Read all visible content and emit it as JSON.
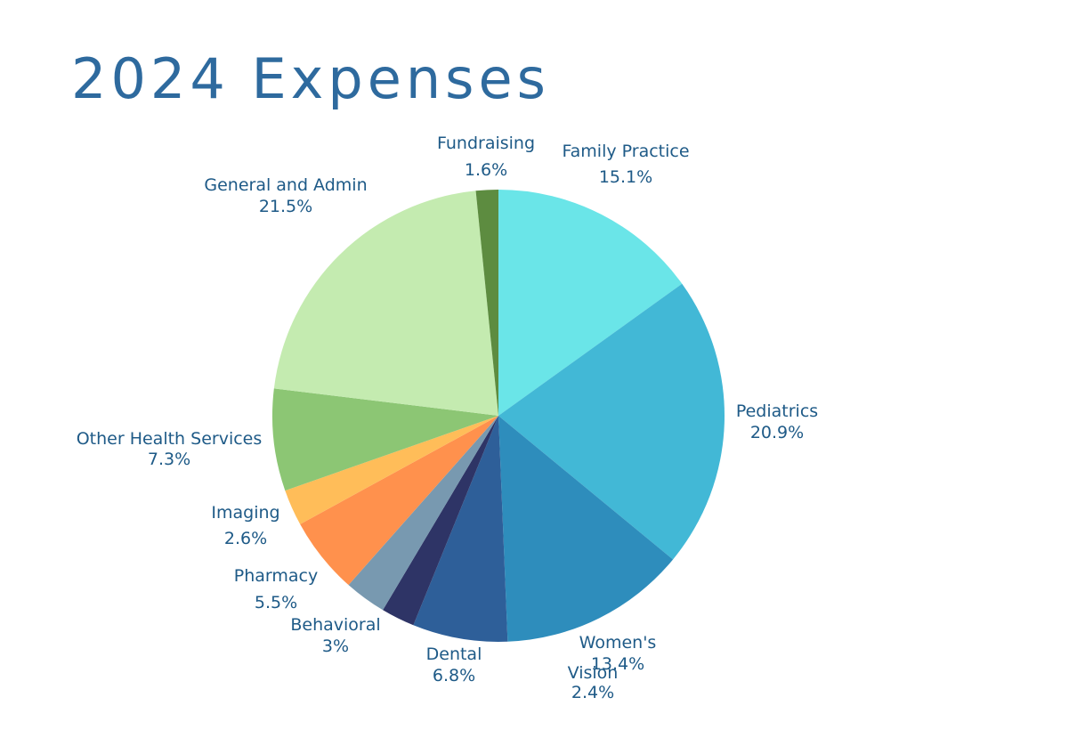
{
  "title": "2024 Expenses",
  "chart_data": {
    "type": "pie",
    "title": "2024 Expenses",
    "slices": [
      {
        "label": "Family Practice",
        "value": 15.1,
        "display": "15.1%",
        "color": "#6ae5e8"
      },
      {
        "label": "Pediatrics",
        "value": 20.9,
        "display": "20.9%",
        "color": "#42b8d6"
      },
      {
        "label": "Women's",
        "value": 13.4,
        "display": "13.4%",
        "color": "#2e8dbc"
      },
      {
        "label": "Dental",
        "value": 6.8,
        "display": "6.8%",
        "color": "#2e5f99"
      },
      {
        "label": "Vision",
        "value": 2.4,
        "display": "2.4%",
        "color": "#2e3466"
      },
      {
        "label": "Behavioral",
        "value": 3,
        "display": "3%",
        "color": "#7899b0"
      },
      {
        "label": "Pharmacy",
        "value": 5.5,
        "display": "5.5%",
        "color": "#ff914d"
      },
      {
        "label": "Imaging",
        "value": 2.6,
        "display": "2.6%",
        "color": "#ffbd59"
      },
      {
        "label": "Other Health Services",
        "value": 7.3,
        "display": "7.3%",
        "color": "#8cc674"
      },
      {
        "label": "General and Admin",
        "value": 21.5,
        "display": "21.5%",
        "color": "#c4ebb0"
      },
      {
        "label": "Fundraising",
        "value": 1.6,
        "display": "1.6%",
        "color": "#5d8c40"
      }
    ],
    "legend": "none",
    "label_color": "#1e5a87"
  }
}
